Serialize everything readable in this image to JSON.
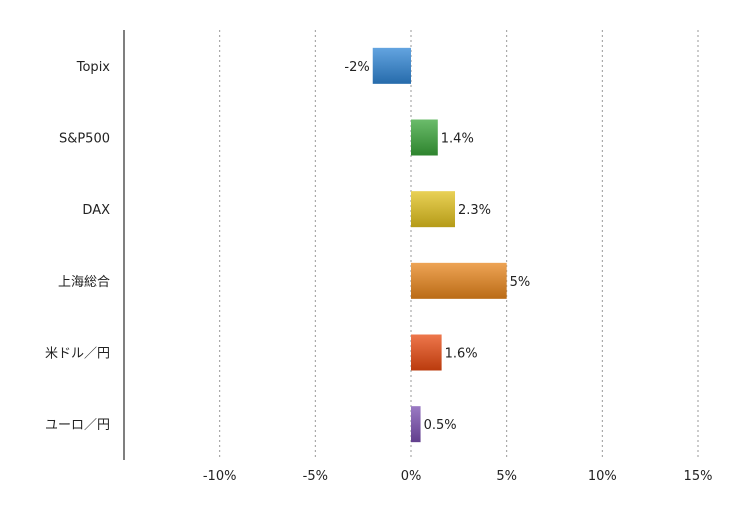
{
  "chart_data": {
    "type": "bar",
    "orientation": "horizontal",
    "categories": [
      "Topix",
      "S&P500",
      "DAX",
      "上海総合",
      "米ドル／円",
      "ユーロ／円"
    ],
    "values": [
      -2,
      1.4,
      2.3,
      5,
      1.6,
      0.5
    ],
    "data_labels": [
      "-2%",
      "1.4%",
      "2.3%",
      "5%",
      "1.6%",
      "0.5%"
    ],
    "colors": [
      "#2f86d6",
      "#3aa53a",
      "#e2c21e",
      "#e8861c",
      "#e84a10",
      "#7a4fb0"
    ],
    "x_ticks": [
      -10,
      -5,
      0,
      5,
      10,
      15
    ],
    "x_tick_labels": [
      "-10%",
      "-5%",
      "0%",
      "5%",
      "10%",
      "15%"
    ],
    "xlim": [
      -15,
      15
    ],
    "grid": true,
    "legend": "none"
  }
}
